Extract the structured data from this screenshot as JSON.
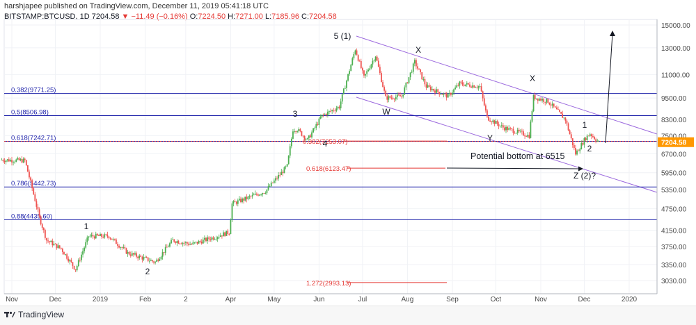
{
  "header": {
    "published": "harshjapee published on TradingView.com, December 11, 2019 05:41:18 UTC",
    "symbol": "BITSTAMP:BTCUSD, 1D",
    "last": "7204.58",
    "change_arrow": "▼",
    "change": "−11.49 (−0.16%)",
    "o_label": "O:",
    "o_val": "7224.50",
    "h_label": "H:",
    "h_val": "7271.00",
    "l_label": "L:",
    "l_val": "7185.96",
    "c_label": "C:",
    "c_val": "7204.58"
  },
  "footer": {
    "brand": "TradingView"
  },
  "colors": {
    "up": "#26a69a",
    "down": "#ef5350",
    "candle_up": "#4caf50",
    "candle_down": "#ef5350",
    "fib": "#1e22aa",
    "channel": "#9c6ade",
    "price_tag": "#ff9800",
    "red_note": "#e53935"
  },
  "chart_data": {
    "type": "candlestick",
    "x_ticks": [
      "Nov",
      "Dec",
      "2019",
      "Feb",
      "2",
      "Apr",
      "May",
      "Jun",
      "Jul",
      "Aug",
      "Sep",
      "Oct",
      "Nov",
      "Dec",
      "2020"
    ],
    "y_ticks": [
      "15000.00",
      "13000.00",
      "11000.00",
      "9500.00",
      "8300.00",
      "7500.00",
      "6700.00",
      "5950.00",
      "5350.00",
      "4750.00",
      "4150.00",
      "3750.00",
      "3350.00",
      "3030.00"
    ],
    "yscale": "log",
    "current_price": "7204.58",
    "price_path": [
      [
        "2018-10-25",
        6450
      ],
      [
        "2018-11-10",
        6420
      ],
      [
        "2018-11-14",
        5600
      ],
      [
        "2018-11-20",
        4500
      ],
      [
        "2018-11-25",
        3900
      ],
      [
        "2018-12-05",
        3700
      ],
      [
        "2018-12-15",
        3250
      ],
      [
        "2018-12-24",
        4000
      ],
      [
        "2019-01-07",
        4000
      ],
      [
        "2019-01-20",
        3600
      ],
      [
        "2019-02-08",
        3400
      ],
      [
        "2019-02-20",
        3900
      ],
      [
        "2019-03-05",
        3800
      ],
      [
        "2019-03-31",
        4100
      ],
      [
        "2019-04-02",
        4900
      ],
      [
        "2019-04-25",
        5300
      ],
      [
        "2019-05-10",
        6200
      ],
      [
        "2019-05-14",
        7800
      ],
      [
        "2019-05-17",
        7800
      ],
      [
        "2019-05-24",
        7300
      ],
      [
        "2019-06-03",
        8500
      ],
      [
        "2019-06-15",
        9000
      ],
      [
        "2019-06-26",
        12900
      ],
      [
        "2019-07-02",
        10800
      ],
      [
        "2019-07-10",
        12400
      ],
      [
        "2019-07-17",
        9500
      ],
      [
        "2019-07-28",
        9600
      ],
      [
        "2019-08-06",
        11900
      ],
      [
        "2019-08-14",
        10200
      ],
      [
        "2019-08-29",
        9600
      ],
      [
        "2019-09-06",
        10400
      ],
      [
        "2019-09-20",
        10200
      ],
      [
        "2019-09-25",
        8400
      ],
      [
        "2019-10-06",
        7900
      ],
      [
        "2019-10-24",
        7500
      ],
      [
        "2019-10-27",
        9550
      ],
      [
        "2019-11-06",
        9300
      ],
      [
        "2019-11-18",
        8300
      ],
      [
        "2019-11-25",
        6700
      ],
      [
        "2019-12-02",
        7400
      ],
      [
        "2019-12-05",
        7600
      ],
      [
        "2019-12-11",
        7204
      ]
    ],
    "fib_levels": [
      {
        "label": "0.382(9771.25)",
        "value": 9771.25
      },
      {
        "label": "0.5(8506.98)",
        "value": 8506.98
      },
      {
        "label": "0.618(7242.71)",
        "value": 7242.71
      },
      {
        "label": "0.786(5442.73)",
        "value": 5442.73
      },
      {
        "label": "0.88(4435.60)",
        "value": 4435.6
      }
    ],
    "red_levels": [
      {
        "label": "0.382(7253.07)",
        "value": 7253.07
      },
      {
        "label": "0.618(6123.47)",
        "value": 6123.47
      },
      {
        "label": "1.272(2993.13)",
        "value": 2993.13
      }
    ],
    "wave_labels": [
      "1",
      "2",
      "3",
      "4",
      "5 (1)",
      "X",
      "W",
      "X",
      "Y",
      "1",
      "2",
      "Z (2)?"
    ],
    "annotation": "Potential bottom at 6515"
  }
}
